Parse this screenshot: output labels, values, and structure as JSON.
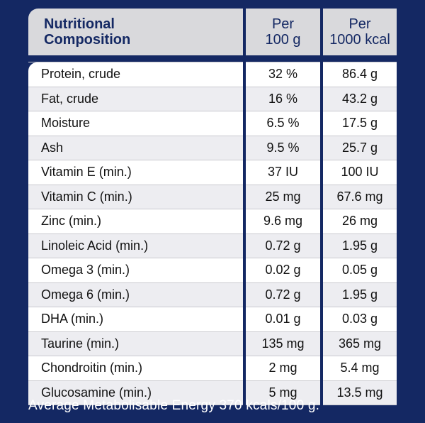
{
  "header": {
    "col1": [
      "Nutritional",
      "Composition"
    ],
    "col2": [
      "Per",
      "100 g"
    ],
    "col3": [
      "Per",
      "1000 kcal"
    ]
  },
  "rows": [
    {
      "name": "Protein, crude",
      "per100g": "32 %",
      "per1000kcal": "86.4 g"
    },
    {
      "name": "Fat, crude",
      "per100g": "16 %",
      "per1000kcal": "43.2 g"
    },
    {
      "name": "Moisture",
      "per100g": "6.5 %",
      "per1000kcal": "17.5 g"
    },
    {
      "name": "Ash",
      "per100g": "9.5 %",
      "per1000kcal": "25.7 g"
    },
    {
      "name": "Vitamin E (min.)",
      "per100g": "37 IU",
      "per1000kcal": "100 IU"
    },
    {
      "name": "Vitamin C (min.)",
      "per100g": "25 mg",
      "per1000kcal": "67.6 mg"
    },
    {
      "name": "Zinc (min.)",
      "per100g": "9.6 mg",
      "per1000kcal": "26 mg"
    },
    {
      "name": "Linoleic Acid (min.)",
      "per100g": "0.72 g",
      "per1000kcal": "1.95 g"
    },
    {
      "name": "Omega 3 (min.)",
      "per100g": "0.02 g",
      "per1000kcal": "0.05 g"
    },
    {
      "name": "Omega 6 (min.)",
      "per100g": "0.72 g",
      "per1000kcal": "1.95 g"
    },
    {
      "name": "DHA (min.)",
      "per100g": "0.01 g",
      "per1000kcal": "0.03 g"
    },
    {
      "name": "Taurine (min.)",
      "per100g": "135 mg",
      "per1000kcal": "365 mg"
    },
    {
      "name": "Chondroitin (min.)",
      "per100g": "2 mg",
      "per1000kcal": "5.4 mg"
    },
    {
      "name": "Glucosamine (min.)",
      "per100g": "5 mg",
      "per1000kcal": "13.5 mg"
    }
  ],
  "footer": "Average Metabolisable Energy 370 kcals/100 g.",
  "colors": {
    "background": "#142863",
    "header_bg": "#d9d9dc",
    "row_alt": "#ededf1"
  }
}
